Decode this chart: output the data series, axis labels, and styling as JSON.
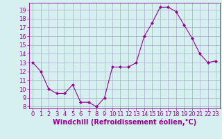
{
  "x": [
    0,
    1,
    2,
    3,
    4,
    5,
    6,
    7,
    8,
    9,
    10,
    11,
    12,
    13,
    14,
    15,
    16,
    17,
    18,
    19,
    20,
    21,
    22,
    23
  ],
  "y": [
    13,
    12,
    10,
    9.5,
    9.5,
    10.5,
    8.5,
    8.5,
    8,
    9,
    12.5,
    12.5,
    12.5,
    13,
    16,
    17.5,
    19.3,
    19.3,
    18.8,
    17.3,
    15.8,
    14,
    13,
    13.2
  ],
  "line_color": "#990099",
  "marker": "D",
  "marker_size": 2.0,
  "bg_color": "#d6f0f0",
  "grid_color": "#aaaacc",
  "xlabel": "Windchill (Refroidissement éolien,°C)",
  "xlabel_color": "#990099",
  "xlabel_fontsize": 7,
  "tick_color": "#990099",
  "tick_fontsize": 6,
  "ylim": [
    7.8,
    19.8
  ],
  "yticks": [
    8,
    9,
    10,
    11,
    12,
    13,
    14,
    15,
    16,
    17,
    18,
    19
  ],
  "xlim": [
    -0.5,
    23.5
  ],
  "xticks": [
    0,
    1,
    2,
    3,
    4,
    5,
    6,
    7,
    8,
    9,
    10,
    11,
    12,
    13,
    14,
    15,
    16,
    17,
    18,
    19,
    20,
    21,
    22,
    23
  ]
}
